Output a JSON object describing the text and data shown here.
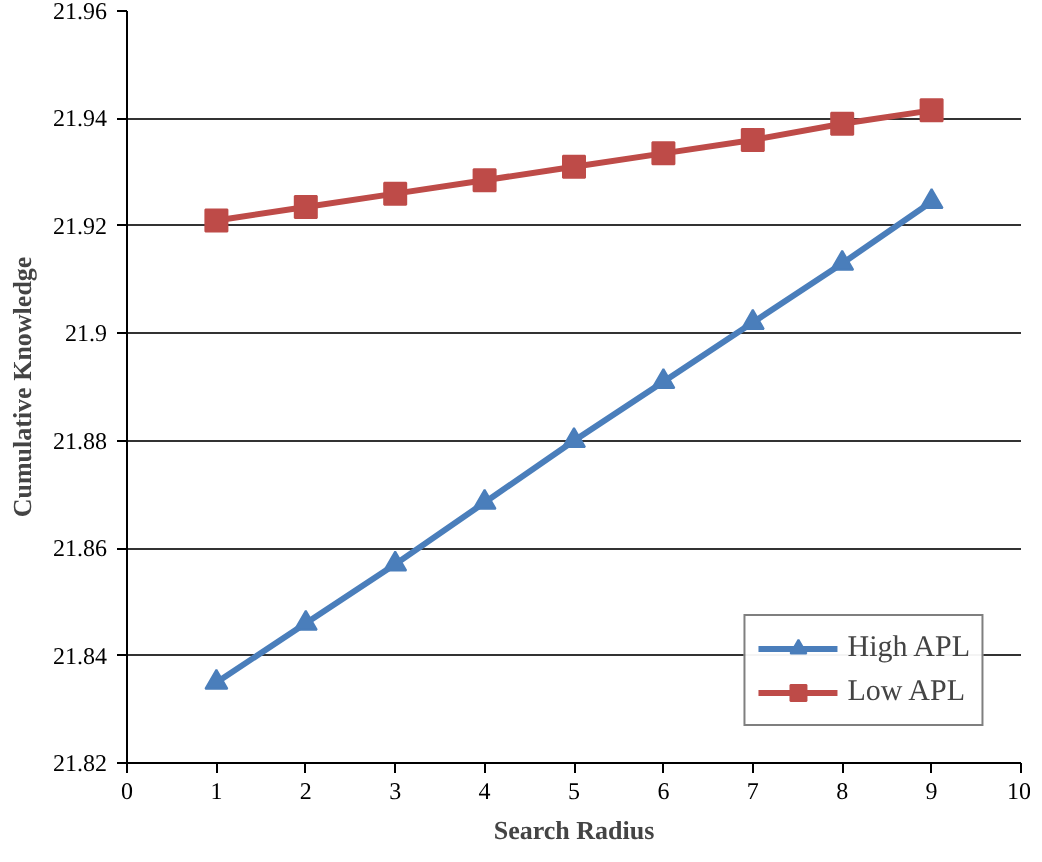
{
  "chart_data": {
    "type": "line",
    "xlabel": "Search Radius",
    "ylabel": "Cumulative Knowledge",
    "x": [
      1,
      2,
      3,
      4,
      5,
      6,
      7,
      8,
      9
    ],
    "series": [
      {
        "name": "High APL",
        "color": "#4a7ebb",
        "marker": "triangle",
        "values": [
          21.835,
          21.846,
          21.857,
          21.8685,
          21.88,
          21.891,
          21.902,
          21.913,
          21.9245
        ]
      },
      {
        "name": "Low APL",
        "color": "#be4b48",
        "marker": "square",
        "values": [
          21.921,
          21.9235,
          21.926,
          21.9285,
          21.931,
          21.9335,
          21.936,
          21.939,
          21.9415
        ]
      }
    ],
    "xlim": [
      0,
      10
    ],
    "xticks": [
      0,
      1,
      2,
      3,
      4,
      5,
      6,
      7,
      8,
      9,
      10
    ],
    "ylim": [
      21.82,
      21.96
    ],
    "yticks": [
      21.82,
      21.84,
      21.86,
      21.88,
      {
        "value": 21.9,
        "label": "21.9"
      },
      21.92,
      21.94,
      21.96
    ],
    "grid": "y",
    "legend": "bottom right",
    "line_style": "solid"
  }
}
